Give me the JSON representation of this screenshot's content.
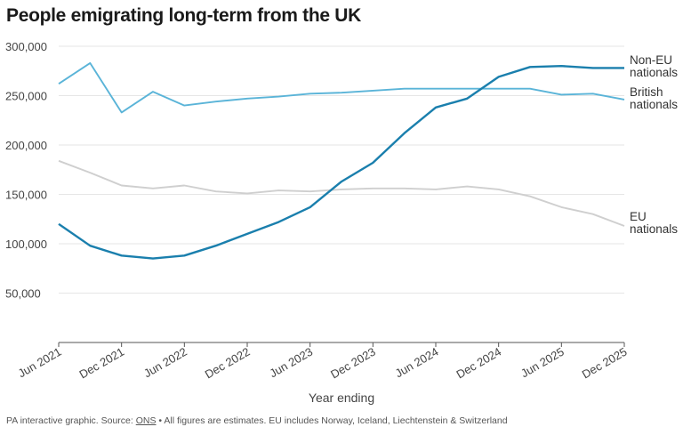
{
  "chart_data": {
    "type": "line",
    "title": "People emigrating long-term from the UK",
    "xlabel": "Year ending",
    "ylabel": "",
    "ylim": [
      0,
      300000
    ],
    "yticks": [
      50000,
      100000,
      150000,
      200000,
      250000,
      300000
    ],
    "ytick_labels": [
      "50,000",
      "100,000",
      "150,000",
      "200,000",
      "250,000",
      "300,000"
    ],
    "grid": "horizontal",
    "x": [
      "Jun 2021",
      "Sep 2021",
      "Dec 2021",
      "Mar 2022",
      "Jun 2022",
      "Sep 2022",
      "Dec 2022",
      "Mar 2023",
      "Jun 2023",
      "Sep 2023",
      "Dec 2023",
      "Mar 2024",
      "Jun 2024",
      "Sep 2024",
      "Dec 2024",
      "Mar 2025",
      "Jun 2025",
      "Sep 2025",
      "Dec 2025"
    ],
    "xtick_labels": [
      "Jun 2021",
      "Dec 2021",
      "Jun 2022",
      "Dec 2022",
      "Jun 2023",
      "Dec 2023",
      "Jun 2024",
      "Dec 2024",
      "Jun 2025",
      "Dec 2025"
    ],
    "series": [
      {
        "name": "Non-EU nationals",
        "label_lines": [
          "Non-EU",
          "nationals"
        ],
        "color": "#1a7fad",
        "values": [
          120000,
          98000,
          88000,
          85000,
          88000,
          98000,
          110000,
          122000,
          137000,
          163000,
          182000,
          212000,
          238000,
          247000,
          269000,
          279000,
          280000,
          278000,
          278000
        ]
      },
      {
        "name": "British nationals",
        "label_lines": [
          "British",
          "nationals"
        ],
        "color": "#5ab4d8",
        "values": [
          262000,
          283000,
          233000,
          254000,
          240000,
          244000,
          247000,
          249000,
          252000,
          253000,
          255000,
          257000,
          257000,
          257000,
          257000,
          257000,
          251000,
          252000,
          246000
        ]
      },
      {
        "name": "EU nationals",
        "label_lines": [
          "EU",
          "nationals"
        ],
        "color": "#cfcfcf",
        "values": [
          184000,
          172000,
          159000,
          156000,
          159000,
          153000,
          151000,
          154000,
          153000,
          155000,
          156000,
          156000,
          155000,
          158000,
          155000,
          148000,
          137000,
          130000,
          118000
        ]
      }
    ]
  },
  "footer": {
    "prefix": "PA interactive graphic. Source: ",
    "source_link": "ONS",
    "suffix": " • All figures are estimates. EU includes Norway, Iceland, Liechtenstein & Switzerland"
  }
}
